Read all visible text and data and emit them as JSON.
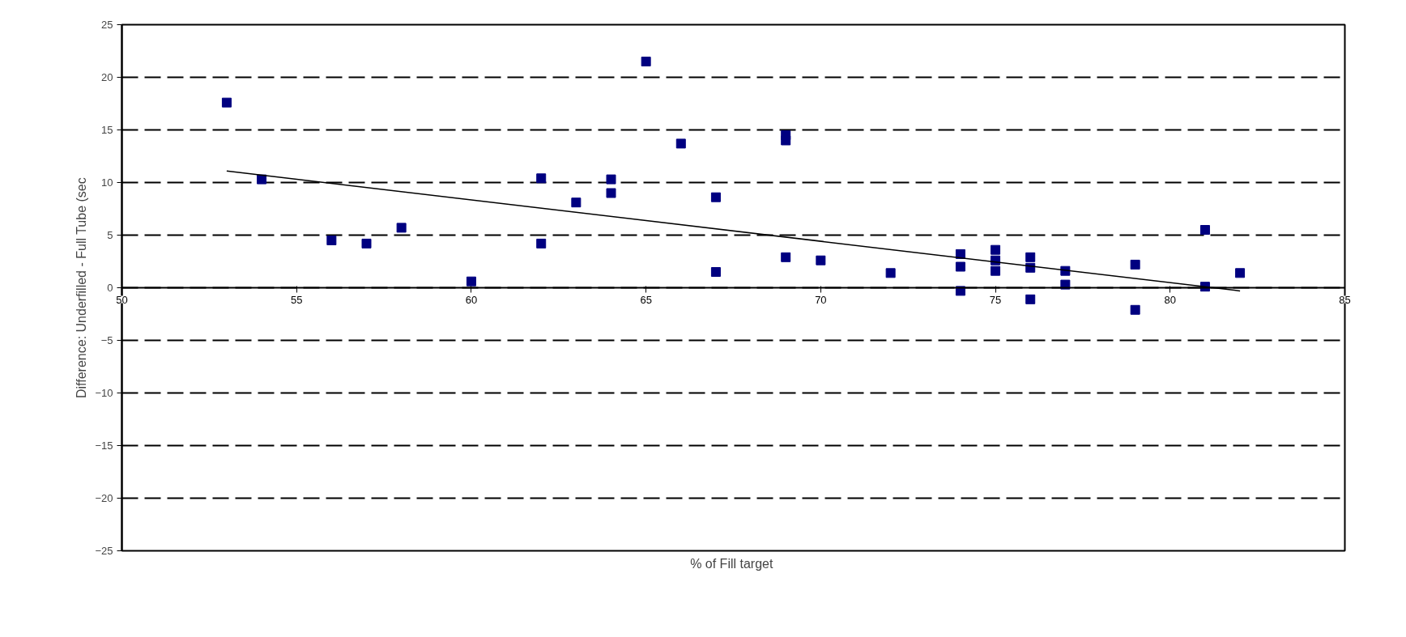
{
  "chart_data": {
    "type": "scatter",
    "xlabel": "%  of Fill target",
    "ylabel": "Difference: Underfilled - Full Tube (sec",
    "xlim": [
      50,
      85
    ],
    "ylim": [
      -25,
      25
    ],
    "xticks": [
      50,
      55,
      60,
      65,
      70,
      75,
      80,
      85
    ],
    "yticks": [
      -25,
      -20,
      -15,
      -10,
      -5,
      0,
      5,
      10,
      15,
      20,
      25
    ],
    "grid": "y",
    "marker": "square",
    "series": [
      {
        "color": "#000080",
        "x": [
          53,
          54,
          56,
          57,
          58,
          60,
          62,
          62,
          63,
          64,
          64,
          65,
          66,
          67,
          67,
          69,
          69,
          69,
          70,
          72,
          74,
          74,
          74,
          75,
          75,
          75,
          76,
          76,
          76,
          77,
          77,
          79,
          79,
          81,
          81,
          82
        ],
        "values": [
          17.6,
          10.3,
          4.5,
          4.2,
          5.7,
          0.6,
          10.4,
          4.2,
          8.1,
          10.3,
          9.0,
          21.5,
          13.7,
          8.6,
          1.5,
          14.5,
          14.0,
          2.9,
          2.6,
          1.4,
          3.2,
          2.0,
          -0.3,
          3.6,
          2.6,
          1.6,
          2.9,
          1.9,
          -1.1,
          1.6,
          0.3,
          2.2,
          -2.1,
          5.5,
          0.1,
          1.4
        ]
      },
      {
        "type": "line",
        "marker": "none",
        "color": "#000000",
        "x": [
          53,
          82
        ],
        "values": [
          11.1,
          -0.3
        ]
      }
    ]
  }
}
